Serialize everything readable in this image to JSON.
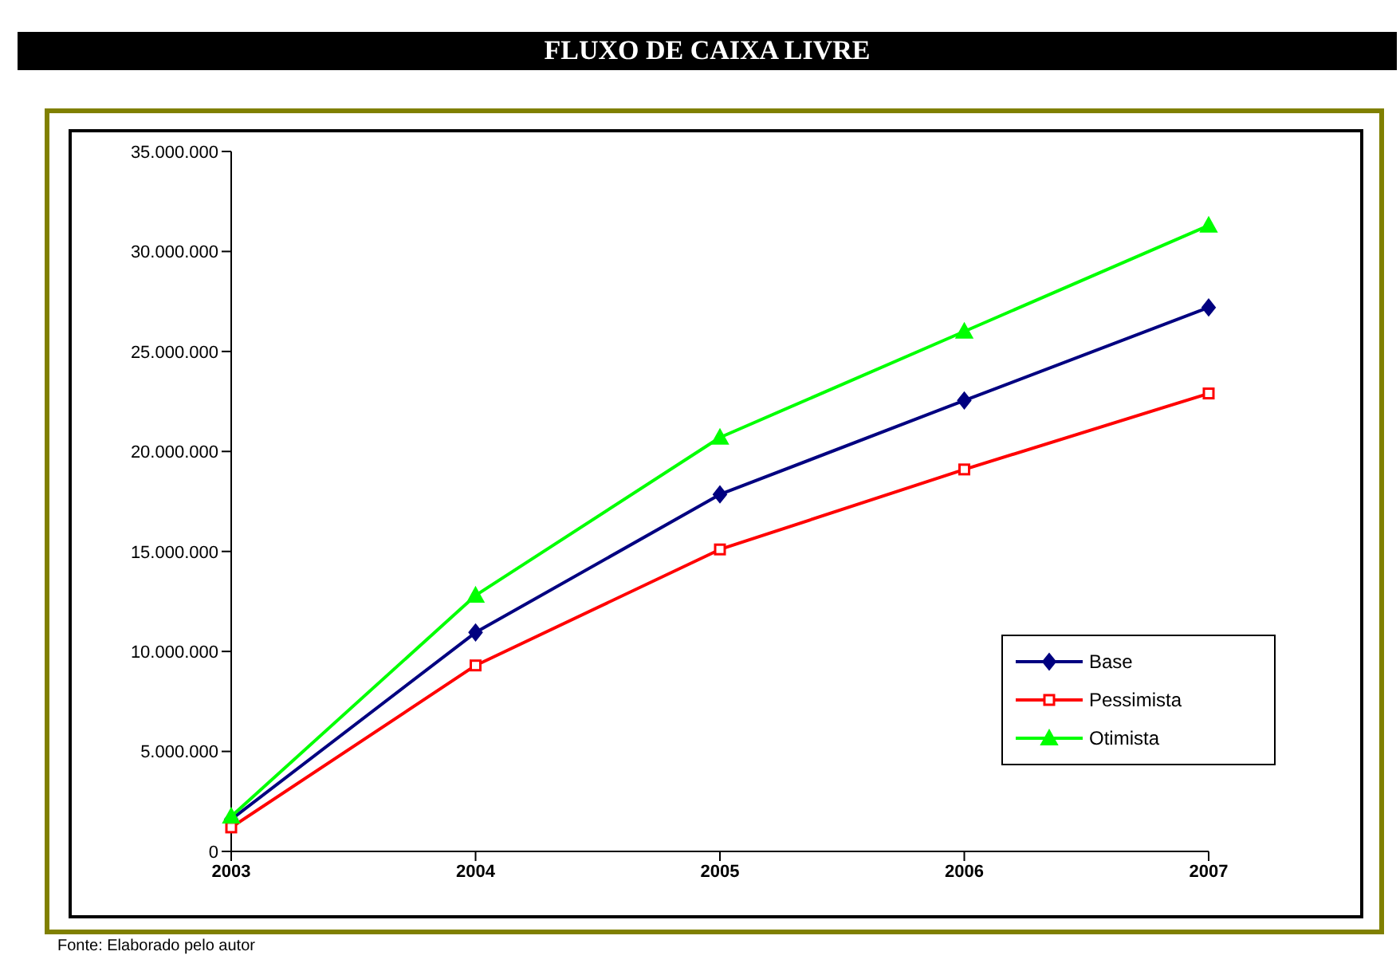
{
  "chart_data": {
    "type": "line",
    "title": "FLUXO DE CAIXA LIVRE",
    "categories": [
      "2003",
      "2004",
      "2005",
      "2006",
      "2007"
    ],
    "series": [
      {
        "name": "Base",
        "color": "#000080",
        "marker": "diamond",
        "values": [
          1600000,
          10950000,
          17850000,
          22550000,
          27200000
        ]
      },
      {
        "name": "Pessimista",
        "color": "#ff0000",
        "marker": "square",
        "values": [
          1200000,
          9300000,
          15100000,
          19100000,
          22900000
        ]
      },
      {
        "name": "Otimista",
        "color": "#00ff00",
        "marker": "triangle",
        "values": [
          1750000,
          12800000,
          20700000,
          26000000,
          31300000
        ]
      }
    ],
    "ylim": [
      0,
      35000000
    ],
    "yticks": [
      0,
      {
        "value": 5000000,
        "label": "5.000.000"
      },
      {
        "value": 10000000,
        "label": "10.000.000"
      },
      {
        "value": 15000000,
        "label": "15.000.000"
      },
      {
        "value": 20000000,
        "label": "20.000.000"
      },
      {
        "value": 25000000,
        "label": "25.000.000"
      },
      {
        "value": 30000000,
        "label": "30.000.000"
      },
      {
        "value": 35000000,
        "label": "35.000.000"
      }
    ],
    "grid": false,
    "legend": "bottom right",
    "line_style": "solid",
    "annotations": [
      "Fonte: Elaborado pelo autor"
    ]
  }
}
